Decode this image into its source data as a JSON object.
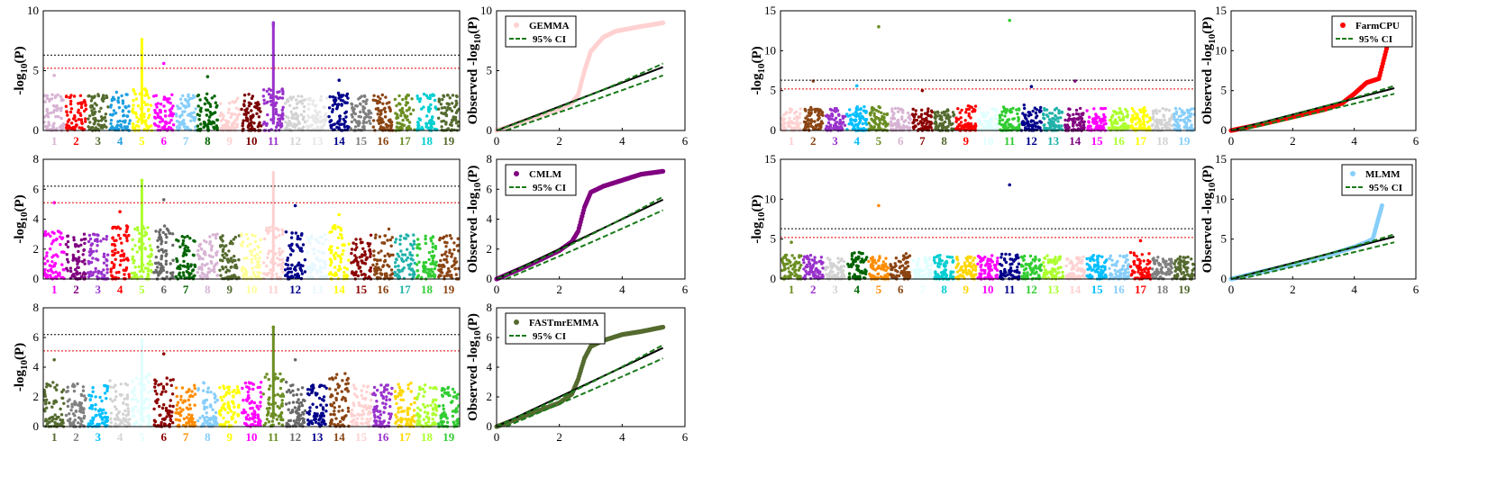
{
  "chart_data": [
    {
      "type": "scatter",
      "kind": "manhattan",
      "panel": "gemma-manhattan",
      "ylabel": "-log10(P)",
      "ylim": [
        0,
        10
      ],
      "yticks": [
        "0",
        "5",
        "10"
      ],
      "chromosomes": [
        "1",
        "2",
        "3",
        "4",
        "5",
        "6",
        "7",
        "8",
        "9",
        "10",
        "11",
        "12",
        "13",
        "14",
        "15",
        "16",
        "17",
        "18",
        "19"
      ],
      "colors": [
        "#d8b4d4",
        "#ff0000",
        "#556b2f",
        "#1e9fe0",
        "#ffff00",
        "#ff00ff",
        "#87cefa",
        "#006400",
        "#ffd1d1",
        "#7a0000",
        "#9932cc",
        "#d3d3d3",
        "#e8e8e8",
        "#00008b",
        "#808080",
        "#8b4513",
        "#6b8e23",
        "#00ced1",
        "#556b2f"
      ],
      "baseline_max": [
        3.0,
        3.0,
        3.1,
        3.2,
        7.6,
        3.0,
        3.0,
        3.1,
        2.9,
        3.1,
        9.0,
        3.0,
        2.9,
        3.2,
        3.0,
        3.0,
        3.0,
        3.1,
        3.0
      ],
      "outliers": [
        [
          1,
          4.6
        ],
        [
          6,
          5.6
        ],
        [
          8,
          4.5
        ],
        [
          11,
          8.8
        ],
        [
          14,
          4.2
        ]
      ],
      "thresholds": [
        6.3,
        5.2
      ]
    },
    {
      "type": "scatter",
      "kind": "qq",
      "panel": "gemma-qq",
      "xlim": [
        0,
        6
      ],
      "ylim": [
        0,
        10
      ],
      "xticks": [
        "0",
        "2",
        "4",
        "6"
      ],
      "yticks": [
        "0",
        "5",
        "10"
      ],
      "ylabel": "Observed -log10(P)",
      "series": [
        {
          "name": "GEMMA",
          "color": "#ffd1d1",
          "curve": [
            [
              0,
              0
            ],
            [
              1,
              0.9
            ],
            [
              2,
              1.8
            ],
            [
              2.4,
              2.3
            ],
            [
              2.6,
              3.0
            ],
            [
              2.8,
              5.0
            ],
            [
              3.0,
              6.6
            ],
            [
              3.4,
              7.8
            ],
            [
              3.8,
              8.3
            ],
            [
              4.4,
              8.6
            ],
            [
              5.3,
              9.0
            ]
          ]
        }
      ],
      "ci_label": "95% CI",
      "ci_upper_end": 5.6,
      "ci_lower_end": 4.6
    },
    {
      "type": "scatter",
      "kind": "manhattan",
      "panel": "cmlm-manhattan",
      "ylabel": "-log10(P)",
      "ylim": [
        0,
        8
      ],
      "yticks": [
        "0",
        "2",
        "4",
        "6",
        "8"
      ],
      "chromosomes": [
        "1",
        "2",
        "3",
        "4",
        "5",
        "6",
        "7",
        "8",
        "9",
        "10",
        "11",
        "12",
        "13",
        "14",
        "15",
        "16",
        "17",
        "18",
        "19"
      ],
      "colors": [
        "#ff00ff",
        "#800080",
        "#9932cc",
        "#ff0000",
        "#adff2f",
        "#696969",
        "#006400",
        "#d8b4d4",
        "#556b2f",
        "#ffff99",
        "#ffd1d1",
        "#00008b",
        "#e8f8ff",
        "#ffff00",
        "#8b0000",
        "#8b4513",
        "#20b2aa",
        "#32cd32",
        "#8b4513"
      ],
      "baseline_max": [
        3.2,
        3.0,
        3.0,
        3.6,
        6.6,
        3.6,
        3.1,
        3.0,
        3.0,
        3.0,
        7.1,
        3.4,
        3.0,
        3.8,
        3.0,
        3.4,
        3.0,
        3.0,
        3.0
      ],
      "outliers": [
        [
          1,
          5.1
        ],
        [
          4,
          4.5
        ],
        [
          6,
          5.3
        ],
        [
          12,
          4.9
        ],
        [
          14,
          4.3
        ]
      ],
      "thresholds": [
        6.2,
        5.1
      ]
    },
    {
      "type": "scatter",
      "kind": "qq",
      "panel": "cmlm-qq",
      "xlim": [
        0,
        6
      ],
      "ylim": [
        0,
        8
      ],
      "xticks": [
        "0",
        "2",
        "4",
        "6"
      ],
      "yticks": [
        "0",
        "2",
        "4",
        "6",
        "8"
      ],
      "ylabel": "Observed -log10(P)",
      "series": [
        {
          "name": "CMLM",
          "color": "#800080",
          "curve": [
            [
              0,
              0
            ],
            [
              1,
              0.9
            ],
            [
              2,
              1.9
            ],
            [
              2.4,
              2.5
            ],
            [
              2.6,
              3.2
            ],
            [
              2.8,
              4.8
            ],
            [
              3.0,
              5.8
            ],
            [
              3.4,
              6.2
            ],
            [
              4.0,
              6.6
            ],
            [
              4.6,
              7.0
            ],
            [
              5.3,
              7.2
            ]
          ]
        }
      ],
      "ci_label": "95% CI",
      "ci_upper_end": 5.5,
      "ci_lower_end": 4.6
    },
    {
      "type": "scatter",
      "kind": "manhattan",
      "panel": "fastmrmma-manhattan",
      "ylabel": "-log10(P)",
      "ylim": [
        0,
        8
      ],
      "yticks": [
        "0",
        "2",
        "4",
        "6",
        "8"
      ],
      "chromosomes": [
        "1",
        "2",
        "3",
        "4",
        "5",
        "6",
        "7",
        "8",
        "9",
        "10",
        "11",
        "12",
        "13",
        "14",
        "15",
        "16",
        "17",
        "18",
        "19"
      ],
      "colors": [
        "#556b2f",
        "#808080",
        "#00bfff",
        "#d3d3d3",
        "#e0ffff",
        "#8b0000",
        "#ff8c00",
        "#87cefa",
        "#ffff00",
        "#ff00ff",
        "#6b8e23",
        "#696969",
        "#00008b",
        "#8b4513",
        "#ffd1d1",
        "#9932cc",
        "#ffd700",
        "#adff2f",
        "#32cd32"
      ],
      "baseline_max": [
        3.0,
        2.9,
        2.8,
        3.1,
        5.8,
        3.4,
        2.8,
        3.0,
        2.8,
        3.0,
        6.7,
        3.0,
        2.8,
        3.6,
        2.8,
        2.8,
        3.0,
        2.8,
        2.8
      ],
      "outliers": [
        [
          1,
          4.5
        ],
        [
          6,
          4.9
        ],
        [
          12,
          4.5
        ]
      ],
      "thresholds": [
        6.2,
        5.1
      ]
    },
    {
      "type": "scatter",
      "kind": "qq",
      "panel": "fastmrmma-qq",
      "xlim": [
        0,
        6
      ],
      "ylim": [
        0,
        8
      ],
      "xticks": [
        "0",
        "2",
        "4",
        "6"
      ],
      "yticks": [
        "0",
        "2",
        "4",
        "6",
        "8"
      ],
      "ylabel": "Observed -log10(P)",
      "series": [
        {
          "name": "FASTmrEMMA",
          "color": "#556b2f",
          "curve": [
            [
              0,
              0
            ],
            [
              1,
              0.8
            ],
            [
              2,
              1.6
            ],
            [
              2.4,
              2.2
            ],
            [
              2.6,
              3.2
            ],
            [
              2.8,
              4.6
            ],
            [
              3.0,
              5.4
            ],
            [
              3.4,
              5.8
            ],
            [
              4.0,
              6.2
            ],
            [
              4.6,
              6.4
            ],
            [
              5.3,
              6.7
            ]
          ]
        }
      ],
      "ci_label": "95% CI",
      "ci_upper_end": 5.5,
      "ci_lower_end": 4.6
    },
    {
      "type": "scatter",
      "kind": "manhattan",
      "panel": "farmcpu-manhattan",
      "ylabel": "-log10(P)",
      "ylim": [
        0,
        15
      ],
      "yticks": [
        "0",
        "5",
        "10",
        "15"
      ],
      "chromosomes": [
        "1",
        "2",
        "3",
        "4",
        "5",
        "6",
        "7",
        "8",
        "9",
        "10",
        "11",
        "12",
        "13",
        "14",
        "15",
        "16",
        "17",
        "18",
        "19"
      ],
      "colors": [
        "#ffd1d1",
        "#8b4513",
        "#9932cc",
        "#00bfff",
        "#6b8e23",
        "#d8b4d4",
        "#8b0000",
        "#556b2f",
        "#ff0000",
        "#e0ffff",
        "#32cd32",
        "#00008b",
        "#20b2aa",
        "#800080",
        "#ff00ff",
        "#adff2f",
        "#ffff00",
        "#d3d3d3",
        "#87cefa"
      ],
      "baseline_max": [
        2.8,
        3.0,
        2.8,
        3.0,
        3.0,
        2.8,
        2.8,
        2.8,
        3.2,
        2.8,
        3.0,
        3.2,
        2.8,
        3.0,
        2.8,
        2.8,
        3.0,
        2.8,
        2.8
      ],
      "outliers": [
        [
          2,
          6.2
        ],
        [
          4,
          5.6
        ],
        [
          5,
          13.0
        ],
        [
          7,
          5.0
        ],
        [
          11,
          13.8
        ],
        [
          12,
          5.5
        ],
        [
          14,
          6.2
        ]
      ],
      "thresholds": [
        6.3,
        5.2
      ]
    },
    {
      "type": "scatter",
      "kind": "qq",
      "panel": "farmcpu-qq",
      "xlim": [
        0,
        6
      ],
      "ylim": [
        0,
        15
      ],
      "xticks": [
        "0",
        "2",
        "4",
        "6"
      ],
      "yticks": [
        "0",
        "5",
        "10",
        "15"
      ],
      "ylabel": "Observed -log10(P)",
      "series": [
        {
          "name": "FarmCPU",
          "color": "#ff0000",
          "curve": [
            [
              0,
              0
            ],
            [
              1,
              0.8
            ],
            [
              2,
              1.7
            ],
            [
              3,
              2.6
            ],
            [
              3.6,
              3.4
            ],
            [
              4.0,
              4.6
            ],
            [
              4.4,
              6.0
            ],
            [
              4.8,
              6.5
            ],
            [
              5.3,
              14.0
            ]
          ]
        }
      ],
      "ci_label": "95% CI",
      "ci_upper_end": 5.6,
      "ci_lower_end": 4.6
    },
    {
      "type": "scatter",
      "kind": "manhattan",
      "panel": "mlmm-manhattan",
      "ylabel": "-log10(P)",
      "ylim": [
        0,
        15
      ],
      "yticks": [
        "0",
        "5",
        "10",
        "15"
      ],
      "chromosomes": [
        "1",
        "2",
        "3",
        "4",
        "5",
        "6",
        "7",
        "8",
        "9",
        "10",
        "11",
        "12",
        "13",
        "14",
        "15",
        "16",
        "17",
        "18",
        "19"
      ],
      "colors": [
        "#6b8e23",
        "#9932cc",
        "#d3d3d3",
        "#006400",
        "#ff8c00",
        "#8b4513",
        "#e0ffff",
        "#00ced1",
        "#ffd700",
        "#ff00ff",
        "#00008b",
        "#32cd32",
        "#adff2f",
        "#ffd1d1",
        "#00bfff",
        "#87cefa",
        "#ff0000",
        "#808080",
        "#556b2f"
      ],
      "baseline_max": [
        3.0,
        3.0,
        2.8,
        3.4,
        3.0,
        3.2,
        2.8,
        3.0,
        2.8,
        3.0,
        3.2,
        3.0,
        3.0,
        2.8,
        3.0,
        3.0,
        3.4,
        2.8,
        2.8
      ],
      "outliers": [
        [
          1,
          4.6
        ],
        [
          5,
          9.2
        ],
        [
          11,
          11.8
        ],
        [
          17,
          4.8
        ]
      ],
      "thresholds": [
        6.3,
        5.2
      ]
    },
    {
      "type": "scatter",
      "kind": "qq",
      "panel": "mlmm-qq",
      "xlim": [
        0,
        6
      ],
      "ylim": [
        0,
        15
      ],
      "xticks": [
        "0",
        "2",
        "4",
        "6"
      ],
      "yticks": [
        "0",
        "5",
        "10",
        "15"
      ],
      "ylabel": "Observed -log10(P)",
      "series": [
        {
          "name": "MLMM",
          "color": "#87cefa",
          "curve": [
            [
              0,
              0
            ],
            [
              1,
              0.9
            ],
            [
              2,
              1.8
            ],
            [
              3,
              2.8
            ],
            [
              4,
              4.0
            ],
            [
              4.4,
              4.6
            ],
            [
              4.6,
              5.0
            ],
            [
              4.9,
              9.2
            ]
          ]
        }
      ],
      "ci_label": "95% CI",
      "ci_upper_end": 5.6,
      "ci_lower_end": 4.6
    }
  ]
}
